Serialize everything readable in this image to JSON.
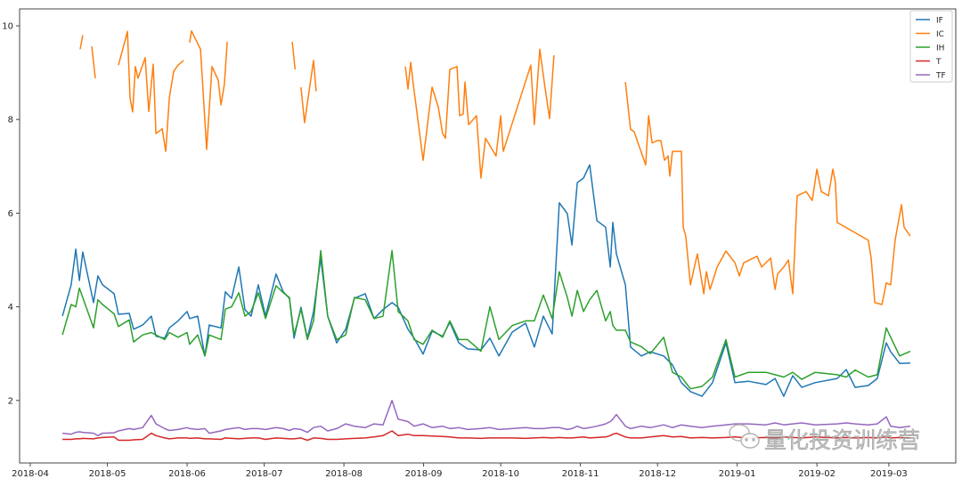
{
  "chart_data": {
    "type": "line",
    "title": "",
    "xlabel": "",
    "ylabel": "",
    "x_unit": "days since 2018-04-01",
    "xlim_dates": [
      "2018-03-27",
      "2019-03-16"
    ],
    "ylim": [
      0.67,
      10.36
    ],
    "grid": false,
    "legend_position": "top-right",
    "x_ticks": [
      {
        "label": "2018-04",
        "day": 0
      },
      {
        "label": "2018-05",
        "day": 30
      },
      {
        "label": "2018-06",
        "day": 61
      },
      {
        "label": "2018-07",
        "day": 91
      },
      {
        "label": "2018-08",
        "day": 122
      },
      {
        "label": "2018-09",
        "day": 153
      },
      {
        "label": "2018-10",
        "day": 183
      },
      {
        "label": "2018-11",
        "day": 214
      },
      {
        "label": "2018-12",
        "day": 244
      },
      {
        "label": "2019-01",
        "day": 275
      },
      {
        "label": "2019-02",
        "day": 306
      },
      {
        "label": "2019-03",
        "day": 334
      }
    ],
    "y_ticks": [
      {
        "label": "2",
        "value": 2
      },
      {
        "label": "4",
        "value": 4
      },
      {
        "label": "6",
        "value": 6
      },
      {
        "label": "8",
        "value": 8
      },
      {
        "label": "10",
        "value": 10
      }
    ],
    "x_days": [
      12.5,
      15.9,
      17.7,
      19.1,
      20.4,
      24.6,
      26.3,
      28.1,
      32.6,
      34.3,
      38.5,
      40.2,
      43.7,
      47.1,
      48.9,
      52.3,
      54.1,
      57.5,
      61,
      62,
      65.1,
      67.9,
      69.6,
      74.2,
      75.9,
      78.3,
      81.1,
      83.5,
      85.9,
      88.7,
      91.5,
      95.6,
      98.4,
      100.8,
      102.6,
      105.3,
      107.8,
      110.2,
      113,
      115.7,
      119.2,
      122.7,
      126.1,
      130.3,
      133.7,
      137.2,
      140.7,
      143.1,
      146.9,
      149.3,
      152.8,
      156.3,
      160.4,
      163.2,
      166.7,
      170.1,
      175.3,
      178.8,
      182.3,
      187.5,
      192.7,
      196.1,
      199.6,
      203,
      205.8,
      208.9,
      210.7,
      212.8,
      215.2,
      217.6,
      220.4,
      223.8,
      225.6,
      226.6,
      228,
      231.5,
      233.5,
      237.7,
      241.2,
      246.4,
      249.8,
      253.3,
      256.8,
      261.3,
      265.4,
      270.6,
      274.1,
      279.3,
      286.2,
      289.7,
      293.1,
      296.6,
      300.1,
      305.3,
      313.9,
      317.4,
      320.9,
      326,
      329.5,
      333,
      334.7,
      338.2,
      342.3
    ],
    "series": [
      {
        "name": "IF",
        "color": "#1f77b4",
        "values": [
          3.8,
          4.47,
          5.23,
          4.56,
          5.17,
          4.09,
          4.66,
          4.47,
          4.28,
          3.84,
          3.86,
          3.52,
          3.61,
          3.8,
          3.37,
          3.33,
          3.55,
          3.7,
          3.9,
          3.75,
          3.8,
          2.95,
          3.61,
          3.55,
          4.32,
          4.18,
          4.85,
          3.94,
          3.8,
          4.47,
          3.8,
          4.7,
          4.32,
          4.18,
          3.33,
          3.99,
          3.33,
          3.9,
          5.04,
          3.8,
          3.23,
          3.52,
          4.18,
          4.28,
          3.75,
          3.94,
          4.09,
          3.99,
          3.52,
          3.33,
          2.99,
          3.48,
          3.37,
          3.67,
          3.23,
          3.1,
          3.08,
          3.33,
          2.95,
          3.46,
          3.65,
          3.14,
          3.8,
          3.42,
          6.22,
          5.99,
          5.32,
          6.65,
          6.75,
          7.03,
          5.84,
          5.7,
          4.85,
          5.8,
          5.13,
          4.47,
          3.14,
          2.95,
          3.04,
          2.95,
          2.76,
          2.38,
          2.19,
          2.09,
          2.38,
          3.23,
          2.38,
          2.41,
          2.34,
          2.47,
          2.09,
          2.53,
          2.28,
          2.38,
          2.47,
          2.66,
          2.28,
          2.32,
          2.47,
          3.23,
          3.04,
          2.79,
          2.8
        ]
      },
      {
        "name": "IC",
        "color": "#ff7f0e",
        "segments": [
          [
            [
              19.4,
              9.5
            ],
            [
              20.4,
              9.8
            ]
          ],
          [
            [
              23.9,
              9.56
            ],
            [
              25.3,
              8.88
            ]
          ],
          [
            [
              34.3,
              9.16
            ],
            [
              37.8,
              9.88
            ],
            [
              38.8,
              8.46
            ],
            [
              39.8,
              8.16
            ],
            [
              40.9,
              9.13
            ],
            [
              41.9,
              8.88
            ],
            [
              44.7,
              9.32
            ],
            [
              46.1,
              8.17
            ],
            [
              47.8,
              9.18
            ],
            [
              48.9,
              7.7
            ],
            [
              51.3,
              7.8
            ],
            [
              52.7,
              7.32
            ],
            [
              54.1,
              8.46
            ],
            [
              55.8,
              9.03
            ],
            [
              57.5,
              9.16
            ],
            [
              59.6,
              9.26
            ]
          ],
          [
            [
              62,
              9.64
            ],
            [
              62.7,
              9.89
            ],
            [
              66.2,
              9.5
            ],
            [
              68.6,
              7.36
            ],
            [
              70.7,
              9.13
            ],
            [
              73.1,
              8.84
            ],
            [
              74.2,
              8.31
            ],
            [
              75.5,
              8.75
            ],
            [
              76.6,
              9.66
            ]
          ],
          [
            [
              101.9,
              9.66
            ],
            [
              103,
              9.07
            ]
          ],
          [
            [
              105.3,
              8.69
            ],
            [
              106.7,
              7.93
            ],
            [
              110.2,
              9.26
            ],
            [
              111.2,
              8.6
            ]
          ],
          [
            [
              145.9,
              9.13
            ],
            [
              146.9,
              8.65
            ],
            [
              148,
              9.22
            ],
            [
              149,
              8.75
            ],
            [
              152.8,
              7.13
            ],
            [
              156.3,
              8.69
            ],
            [
              158.7,
              8.27
            ],
            [
              160.4,
              7.7
            ],
            [
              161.5,
              7.6
            ],
            [
              163.2,
              9.07
            ],
            [
              166,
              9.13
            ],
            [
              167,
              8.08
            ],
            [
              168.4,
              8.12
            ],
            [
              169.1,
              8.8
            ],
            [
              170.5,
              7.89
            ],
            [
              173.6,
              8.08
            ],
            [
              175.3,
              6.75
            ],
            [
              177.1,
              7.6
            ],
            [
              181.2,
              7.22
            ],
            [
              183,
              8.08
            ],
            [
              184,
              7.32
            ],
            [
              194.7,
              9.16
            ],
            [
              196.1,
              7.89
            ],
            [
              198.2,
              9.5
            ],
            [
              200.3,
              8.65
            ],
            [
              202,
              8.02
            ],
            [
              203.7,
              9.37
            ]
          ],
          [
            [
              231.5,
              8.8
            ],
            [
              233.5,
              7.79
            ],
            [
              234.9,
              7.74
            ],
            [
              239.4,
              7.03
            ],
            [
              240.5,
              8.08
            ],
            [
              241.9,
              7.5
            ],
            [
              243.9,
              7.55
            ],
            [
              245.3,
              7.55
            ],
            [
              246.7,
              7.13
            ],
            [
              248.1,
              7.22
            ],
            [
              248.8,
              6.79
            ],
            [
              249.8,
              7.32
            ],
            [
              253.3,
              7.32
            ],
            [
              254,
              5.7
            ],
            [
              255,
              5.51
            ],
            [
              256.8,
              4.47
            ],
            [
              259.5,
              5.13
            ],
            [
              262,
              4.28
            ],
            [
              263,
              4.75
            ],
            [
              264.4,
              4.37
            ],
            [
              267.2,
              4.85
            ],
            [
              270.6,
              5.19
            ],
            [
              274.1,
              4.94
            ],
            [
              275.8,
              4.66
            ],
            [
              277.5,
              4.94
            ],
            [
              282.7,
              5.08
            ],
            [
              284.5,
              4.85
            ],
            [
              288,
              5.04
            ],
            [
              289.7,
              4.37
            ],
            [
              290.7,
              4.7
            ],
            [
              293.1,
              4.85
            ],
            [
              294.9,
              5.0
            ],
            [
              296.6,
              4.28
            ],
            [
              298.3,
              6.37
            ],
            [
              301.8,
              6.46
            ],
            [
              304.2,
              6.27
            ],
            [
              306,
              6.94
            ],
            [
              307.7,
              6.46
            ],
            [
              310.5,
              6.37
            ],
            [
              312.2,
              6.94
            ],
            [
              313.2,
              6.65
            ],
            [
              313.9,
              5.8
            ],
            [
              326,
              5.42
            ],
            [
              327.1,
              5.04
            ],
            [
              328.5,
              4.09
            ],
            [
              331.3,
              4.05
            ],
            [
              333,
              4.51
            ],
            [
              334.7,
              4.47
            ],
            [
              336.4,
              5.42
            ],
            [
              338.9,
              6.18
            ],
            [
              339.9,
              5.7
            ],
            [
              342.3,
              5.51
            ]
          ]
        ]
      },
      {
        "name": "IH",
        "color": "#2ca02c",
        "values": [
          3.4,
          4.05,
          4.0,
          4.4,
          4.2,
          3.55,
          4.15,
          4.05,
          3.85,
          3.58,
          3.72,
          3.25,
          3.4,
          3.45,
          3.4,
          3.3,
          3.45,
          3.35,
          3.45,
          3.2,
          3.4,
          2.95,
          3.4,
          3.3,
          3.95,
          4.0,
          4.3,
          3.8,
          3.9,
          4.3,
          3.75,
          4.45,
          4.3,
          4.2,
          3.4,
          3.95,
          3.3,
          3.7,
          5.2,
          3.8,
          3.3,
          3.4,
          4.2,
          4.15,
          3.75,
          3.8,
          5.2,
          3.9,
          3.7,
          3.3,
          3.2,
          3.5,
          3.35,
          3.7,
          3.3,
          3.3,
          3.05,
          4.0,
          3.3,
          3.6,
          3.7,
          3.7,
          4.25,
          3.75,
          4.75,
          4.2,
          3.8,
          4.35,
          3.9,
          4.15,
          4.35,
          3.7,
          3.9,
          3.6,
          3.5,
          3.5,
          3.25,
          3.15,
          3.0,
          3.35,
          2.6,
          2.5,
          2.25,
          2.3,
          2.5,
          3.3,
          2.5,
          2.6,
          2.6,
          2.55,
          2.5,
          2.6,
          2.45,
          2.6,
          2.55,
          2.5,
          2.65,
          2.5,
          2.55,
          3.55,
          3.35,
          2.95,
          3.05
        ]
      },
      {
        "name": "T",
        "color": "#d62728",
        "values": [
          1.17,
          1.17,
          1.18,
          1.18,
          1.19,
          1.18,
          1.2,
          1.21,
          1.22,
          1.15,
          1.15,
          1.16,
          1.17,
          1.3,
          1.25,
          1.2,
          1.18,
          1.2,
          1.2,
          1.19,
          1.2,
          1.18,
          1.18,
          1.17,
          1.2,
          1.19,
          1.18,
          1.19,
          1.2,
          1.2,
          1.17,
          1.2,
          1.19,
          1.18,
          1.18,
          1.2,
          1.15,
          1.2,
          1.19,
          1.17,
          1.17,
          1.18,
          1.19,
          1.2,
          1.22,
          1.25,
          1.35,
          1.25,
          1.28,
          1.25,
          1.25,
          1.24,
          1.23,
          1.22,
          1.2,
          1.2,
          1.19,
          1.2,
          1.2,
          1.2,
          1.19,
          1.2,
          1.21,
          1.2,
          1.21,
          1.2,
          1.2,
          1.21,
          1.22,
          1.2,
          1.21,
          1.22,
          1.25,
          1.28,
          1.3,
          1.22,
          1.2,
          1.2,
          1.22,
          1.25,
          1.22,
          1.23,
          1.2,
          1.21,
          1.2,
          1.21,
          1.22,
          1.2,
          1.21,
          1.2,
          1.22,
          1.21,
          1.2,
          1.22,
          1.2,
          1.21,
          1.2,
          1.21,
          1.2,
          1.22,
          1.2,
          1.21,
          1.2
        ]
      },
      {
        "name": "TF",
        "color": "#9467bd",
        "values": [
          1.3,
          1.28,
          1.32,
          1.33,
          1.32,
          1.3,
          1.25,
          1.3,
          1.31,
          1.35,
          1.4,
          1.38,
          1.42,
          1.68,
          1.5,
          1.4,
          1.36,
          1.38,
          1.42,
          1.4,
          1.38,
          1.4,
          1.3,
          1.35,
          1.38,
          1.4,
          1.42,
          1.38,
          1.4,
          1.4,
          1.38,
          1.42,
          1.4,
          1.36,
          1.4,
          1.38,
          1.32,
          1.42,
          1.45,
          1.35,
          1.4,
          1.5,
          1.45,
          1.42,
          1.5,
          1.48,
          2.0,
          1.6,
          1.55,
          1.45,
          1.5,
          1.42,
          1.45,
          1.4,
          1.42,
          1.38,
          1.4,
          1.42,
          1.38,
          1.4,
          1.42,
          1.4,
          1.4,
          1.42,
          1.42,
          1.38,
          1.4,
          1.45,
          1.4,
          1.42,
          1.45,
          1.5,
          1.55,
          1.6,
          1.7,
          1.45,
          1.4,
          1.45,
          1.42,
          1.48,
          1.42,
          1.48,
          1.45,
          1.42,
          1.45,
          1.48,
          1.5,
          1.5,
          1.48,
          1.52,
          1.48,
          1.5,
          1.52,
          1.48,
          1.5,
          1.52,
          1.5,
          1.48,
          1.5,
          1.65,
          1.45,
          1.42,
          1.45
        ]
      }
    ]
  },
  "watermark": {
    "text": "量化投资训练营",
    "icon": "wechat-icon"
  }
}
